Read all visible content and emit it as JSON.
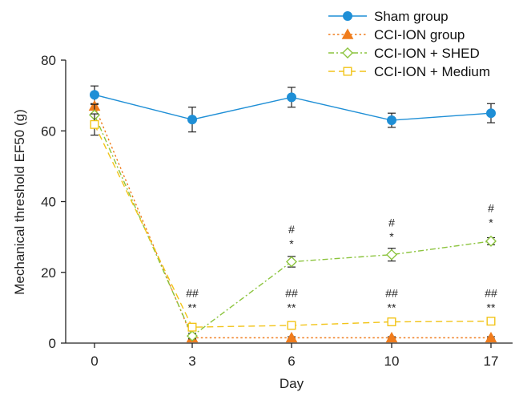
{
  "chart_data": {
    "type": "line",
    "xlabel": "Day",
    "ylabel": "Mechanical threshold EF50 (g)",
    "x": [
      0,
      3,
      6,
      10,
      17
    ],
    "x_tick_labels": [
      "0",
      "3",
      "6",
      "10",
      "17"
    ],
    "ylim": [
      0,
      80
    ],
    "y_ticks": [
      0,
      20,
      40,
      60,
      80
    ],
    "y_tick_labels": [
      "0",
      "20",
      "40",
      "60",
      "80"
    ],
    "grid": false,
    "legend_position": "top-right",
    "series": [
      {
        "name": "Sham group",
        "color": "#1f8fd6",
        "marker": "circle",
        "line_style": "solid",
        "values": [
          70.2,
          63.2,
          69.5,
          63,
          65
        ],
        "errors": [
          2.5,
          3.5,
          2.8,
          2,
          2.7
        ]
      },
      {
        "name": "CCI-ION group",
        "color": "#f07c1c",
        "marker": "triangle",
        "line_style": "dotted",
        "values": [
          67,
          1.5,
          1.5,
          1.5,
          1.5
        ],
        "errors": [
          0.5,
          0.3,
          0.3,
          0.3,
          0.3
        ]
      },
      {
        "name": "CCI-ION + SHED",
        "color": "#8cc43e",
        "marker": "diamond",
        "line_style": "dash-dot",
        "values": [
          64.5,
          2,
          23,
          25,
          28.8
        ],
        "errors": [
          3,
          0.8,
          1.5,
          1.8,
          1
        ]
      },
      {
        "name": "CCI-ION + Medium",
        "color": "#f2c418",
        "marker": "square",
        "line_style": "dashed",
        "values": [
          61.8,
          4.5,
          5,
          6,
          6.2
        ],
        "errors": [
          3,
          0.8,
          0.6,
          0.6,
          0.6
        ]
      }
    ],
    "annotations": [
      {
        "x": 3,
        "y": 9.0,
        "text": "**"
      },
      {
        "x": 3,
        "y": 13.0,
        "text": "##"
      },
      {
        "x": 6,
        "y": 9.0,
        "text": "**"
      },
      {
        "x": 6,
        "y": 13.0,
        "text": "##"
      },
      {
        "x": 6,
        "y": 27.0,
        "text": "*"
      },
      {
        "x": 6,
        "y": 31.0,
        "text": "#"
      },
      {
        "x": 10,
        "y": 9.0,
        "text": "**"
      },
      {
        "x": 10,
        "y": 13.0,
        "text": "##"
      },
      {
        "x": 10,
        "y": 29.0,
        "text": "*"
      },
      {
        "x": 10,
        "y": 33.0,
        "text": "#"
      },
      {
        "x": 17,
        "y": 9.0,
        "text": "**"
      },
      {
        "x": 17,
        "y": 13.0,
        "text": "##"
      },
      {
        "x": 17,
        "y": 33.0,
        "text": "*"
      },
      {
        "x": 17,
        "y": 37.0,
        "text": "#"
      }
    ]
  }
}
